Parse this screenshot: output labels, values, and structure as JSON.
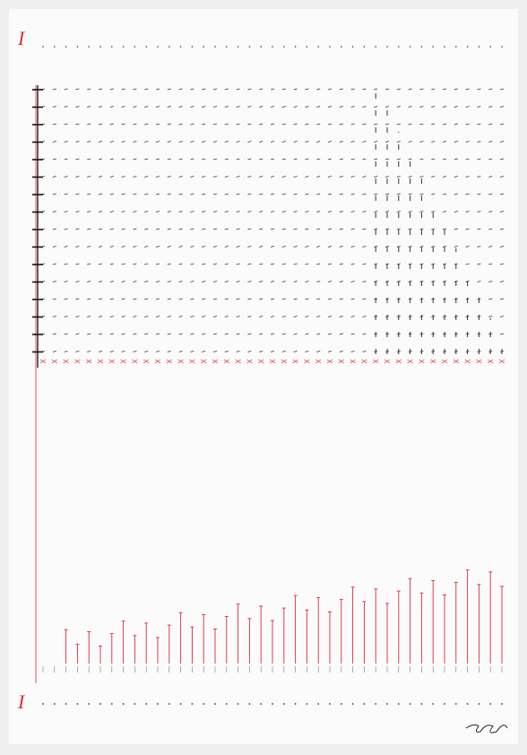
{
  "markers": {
    "top": "I",
    "bottom": "I"
  }
}
